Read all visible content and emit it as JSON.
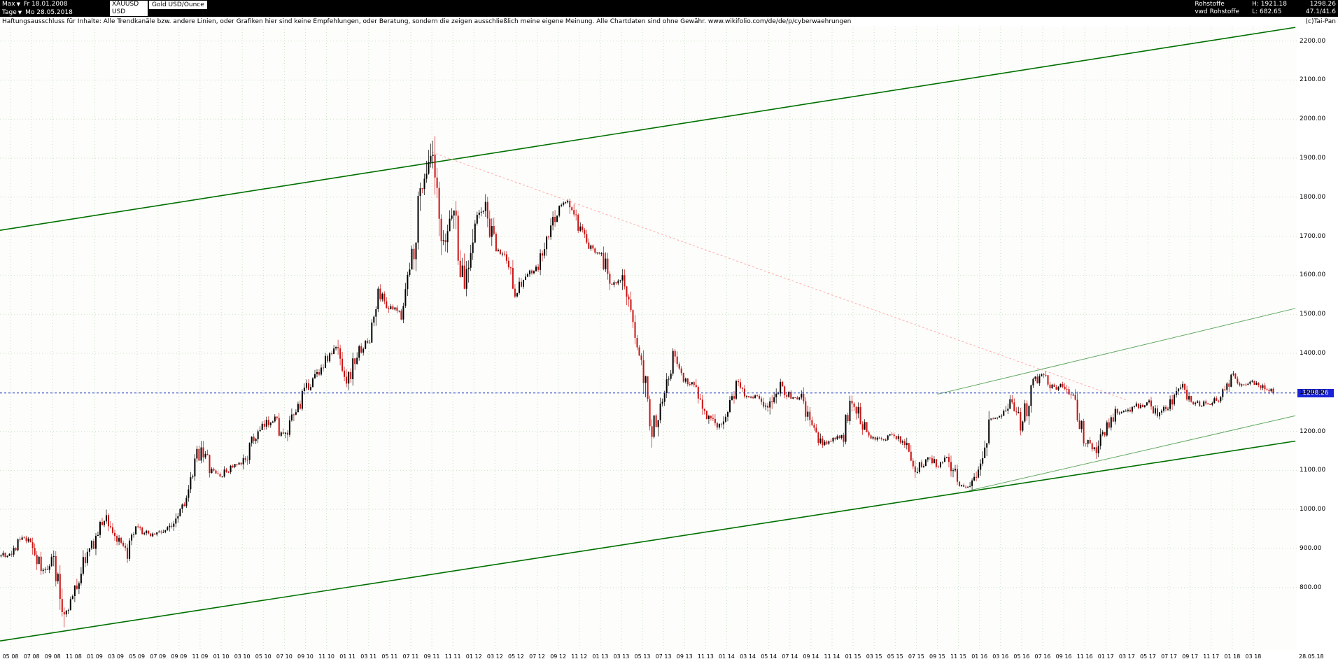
{
  "header": {
    "range": {
      "label": "Max",
      "date": "Fr 18.01.2008"
    },
    "period": {
      "label": "Tage",
      "date": "Mo 28.05.2018"
    },
    "symbol": "XAUUSD",
    "currency": "USD",
    "instrument": "Gold USD/Ounce",
    "right": {
      "category": "Rohstoffe",
      "provider": "vwd Rohstoffe",
      "high": "H: 1921.18",
      "low": "L: 682.65",
      "last": "1298.26",
      "values": "47.1/41.6",
      "copyright": "(c)Tai-Pan"
    }
  },
  "disclaimer": "Haftungsausschluss für Inhalte: Alle Trendkanäle bzw. andere Linien, oder Grafiken hier sind keine Empfehlungen, oder Beratung, sondern die zeigen ausschließlich meine eigene Meinung. Alle Chartdaten sind ohne Gewähr.  www.wikifolio.com/de/de/p/cyberwaehrungen",
  "chart_data": {
    "type": "candlestick",
    "title": "Gold USD/Ounce (XAUUSD), Tage, 18.01.2008 - 28.05.2018",
    "ylabel": "USD",
    "high": 1921.18,
    "low": 682.65,
    "last": 1298.26,
    "last_label": "1298.26",
    "ylim": [
      640,
      2237
    ],
    "grid": true,
    "y_ticks": [
      "2200.00",
      "2100.00",
      "2000.00",
      "1900.00",
      "1800.00",
      "1700.00",
      "1600.00",
      "1500.00",
      "1400.00",
      "1300.00",
      "1200.00",
      "1100.00",
      "1000.00",
      "900.00",
      "800.00"
    ],
    "x_tick_labels": [
      "05 08",
      "07 08",
      "09 08",
      "11 08",
      "01 09",
      "03 09",
      "05 09",
      "07 09",
      "09 09",
      "11 09",
      "01 10",
      "03 10",
      "05 10",
      "07 10",
      "09 10",
      "11 10",
      "01 11",
      "03 11",
      "05 11",
      "07 11",
      "09 11",
      "11 11",
      "01 12",
      "03 12",
      "05 12",
      "07 12",
      "09 12",
      "11 12",
      "01 13",
      "03 13",
      "05 13",
      "07 13",
      "09 13",
      "11 13",
      "01 14",
      "03 14",
      "05 14",
      "07 14",
      "09 14",
      "11 14",
      "01 15",
      "03 15",
      "05 15",
      "07 15",
      "09 15",
      "11 15",
      "01 16",
      "03 16",
      "05 16",
      "07 16",
      "09 16",
      "11 16",
      "01 17",
      "03 17",
      "05 17",
      "07 17",
      "09 17",
      "11 17",
      "01 18",
      "03 18"
    ],
    "x_end_label": "28.05.18",
    "months_start": "2008-01",
    "monthly_close": [
      920,
      965,
      950,
      880,
      890,
      925,
      915,
      835,
      880,
      730,
      780,
      870,
      920,
      985,
      925,
      885,
      950,
      935,
      940,
      950,
      1000,
      1045,
      1170,
      1100,
      1085,
      1110,
      1115,
      1175,
      1210,
      1240,
      1175,
      1245,
      1305,
      1345,
      1385,
      1415,
      1330,
      1405,
      1430,
      1555,
      1515,
      1505,
      1625,
      1830,
      1900,
      1640,
      1790,
      1560,
      1735,
      1775,
      1665,
      1650,
      1560,
      1600,
      1615,
      1690,
      1775,
      1790,
      1715,
      1670,
      1660,
      1580,
      1595,
      1470,
      1390,
      1200,
      1310,
      1395,
      1330,
      1320,
      1250,
      1200,
      1250,
      1325,
      1290,
      1290,
      1250,
      1325,
      1285,
      1285,
      1215,
      1165,
      1180,
      1185,
      1285,
      1215,
      1185,
      1180,
      1190,
      1170,
      1095,
      1135,
      1115,
      1140,
      1065,
      1060,
      1115,
      1235,
      1235,
      1285,
      1215,
      1320,
      1350,
      1310,
      1320,
      1275,
      1180,
      1150,
      1210,
      1250,
      1250,
      1265,
      1270,
      1240,
      1265,
      1320,
      1280,
      1270,
      1275,
      1290,
      1345,
      1320,
      1325,
      1315,
      1298.26
    ],
    "up_color": "#000000",
    "down_color": "#cc1111",
    "grid_color": "#c7e4c7",
    "trend_lines": [
      {
        "name": "upper-channel-line",
        "color": "#007000",
        "width": 1.6,
        "dash": "",
        "from": [
          3,
          1715
        ],
        "to": [
          126,
          2235
        ]
      },
      {
        "name": "lower-channel-line",
        "color": "#007000",
        "width": 1.6,
        "dash": "",
        "from": [
          3,
          663
        ],
        "to": [
          126,
          1175
        ]
      },
      {
        "name": "inner-rising-line-steep",
        "color": "#62a862",
        "width": 1,
        "dash": "",
        "from": [
          92,
          1295
        ],
        "to": [
          126,
          1515
        ]
      },
      {
        "name": "inner-rising-line-flat",
        "color": "#62a862",
        "width": 1,
        "dash": "",
        "from": [
          95,
          1048
        ],
        "to": [
          126,
          1240
        ]
      },
      {
        "name": "downtrend-line",
        "color": "#ffabab",
        "width": 1,
        "dash": "3 3",
        "from": [
          44,
          1915
        ],
        "to": [
          110,
          1280
        ]
      }
    ],
    "last_price_line": {
      "price": 1298.26,
      "color": "#2233cc",
      "dash": "3 3"
    }
  }
}
